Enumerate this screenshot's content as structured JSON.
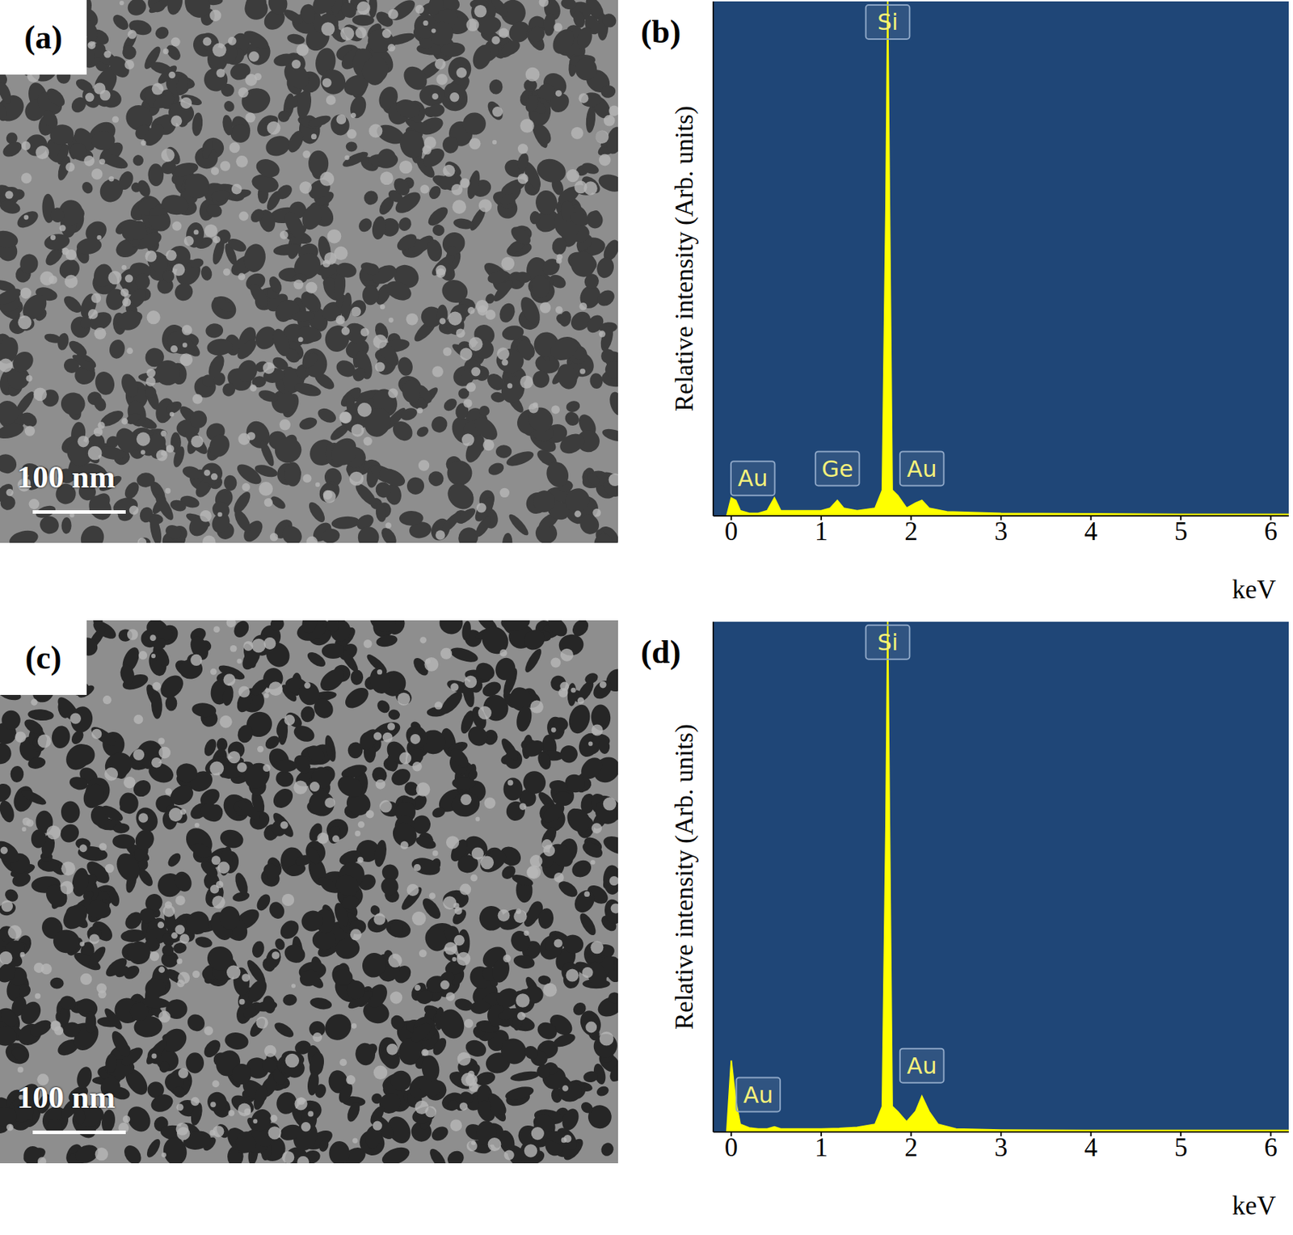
{
  "images": [
    {
      "label": "(a)",
      "scale_bar": {
        "label": "100 nm",
        "length_nm": 100
      }
    },
    {
      "label": "(c)",
      "scale_bar": {
        "label": "100 nm",
        "length_nm": 100
      }
    }
  ],
  "chart_data": [
    {
      "type": "area",
      "title": "(b)",
      "y_label": "Relative intensity (Arb. units)",
      "x_label": "keV",
      "x": [
        -0.05,
        0.0,
        0.05,
        0.1,
        0.2,
        0.3,
        0.4,
        0.48,
        0.55,
        0.8,
        1.0,
        1.1,
        1.18,
        1.25,
        1.4,
        1.6,
        1.68,
        1.72,
        1.74,
        1.76,
        1.79,
        1.85,
        1.95,
        2.05,
        2.12,
        2.2,
        2.4,
        3.0,
        4.0,
        5.0,
        6.2
      ],
      "values": [
        0,
        3.5,
        3,
        1,
        0.5,
        0.5,
        1,
        3.5,
        1,
        1,
        1,
        1.5,
        3,
        1.5,
        1,
        1.5,
        5,
        60,
        100,
        60,
        5,
        4,
        1.5,
        2.5,
        3,
        1.5,
        0.8,
        0.5,
        0.4,
        0.3,
        0.3
      ],
      "color": "#ffff00",
      "xlim": [
        -0.2,
        6.2
      ],
      "xticks": [
        0,
        1,
        2,
        3,
        4,
        5,
        6
      ],
      "ylim": [
        0,
        100
      ],
      "tick_labels": "x",
      "annotations": [
        {
          "text": "Si",
          "x": 1.74,
          "y": 96
        },
        {
          "text": "Au",
          "x": 0.24,
          "y": 7.3
        },
        {
          "text": "Ge",
          "x": 1.18,
          "y": 9.2
        },
        {
          "text": "Au",
          "x": 2.12,
          "y": 9.2
        }
      ]
    },
    {
      "type": "area",
      "title": "(d)",
      "y_label": "Relative intensity (Arb. units)",
      "x_label": "keV",
      "x": [
        -0.05,
        0.0,
        0.05,
        0.1,
        0.2,
        0.3,
        0.4,
        0.48,
        0.55,
        0.8,
        1.0,
        1.2,
        1.4,
        1.6,
        1.68,
        1.72,
        1.74,
        1.76,
        1.79,
        1.85,
        1.95,
        2.05,
        2.12,
        2.2,
        2.3,
        2.5,
        3.0,
        4.0,
        5.0,
        6.2
      ],
      "values": [
        0,
        14,
        6,
        1.5,
        0.8,
        0.6,
        0.6,
        1,
        0.6,
        0.6,
        0.6,
        0.7,
        0.9,
        1.5,
        5,
        60,
        100,
        60,
        5,
        4,
        2,
        4,
        7,
        4,
        1.5,
        0.6,
        0.4,
        0.3,
        0.3,
        0.3
      ],
      "color": "#ffff00",
      "xlim": [
        -0.2,
        6.2
      ],
      "xticks": [
        0,
        1,
        2,
        3,
        4,
        5,
        6
      ],
      "ylim": [
        0,
        100
      ],
      "tick_labels": "x",
      "annotations": [
        {
          "text": "Si",
          "x": 1.74,
          "y": 96
        },
        {
          "text": "Au",
          "x": 0.3,
          "y": 7.3
        },
        {
          "text": "Au",
          "x": 2.12,
          "y": 13
        }
      ]
    }
  ]
}
